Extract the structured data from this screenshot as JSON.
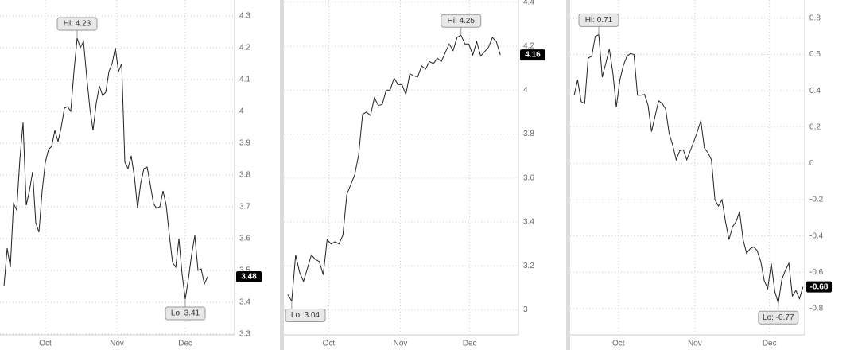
{
  "chart_data": [
    {
      "type": "line",
      "color": "#222222",
      "grid": true,
      "xlim": [
        -1.25,
        72.5
      ],
      "ylim": [
        3.3,
        4.35
      ],
      "xticks": [
        {
          "value": 13,
          "label": "Oct"
        },
        {
          "value": 35.5,
          "label": "Nov"
        },
        {
          "value": 57,
          "label": "Dec"
        }
      ],
      "yticks": [
        3.3,
        3.4,
        3.5,
        3.6,
        3.7,
        3.8,
        3.9,
        4,
        4.1,
        4.2,
        4.3
      ],
      "values": [
        3.45,
        3.57,
        3.51,
        3.71,
        3.69,
        3.85,
        3.965,
        3.705,
        3.75,
        3.81,
        3.65,
        3.62,
        3.75,
        3.84,
        3.88,
        3.89,
        3.94,
        3.905,
        3.95,
        4.01,
        4.015,
        4.0,
        4.125,
        4.23,
        4.2,
        4.22,
        4.11,
        4.01,
        3.94,
        4.025,
        4.08,
        4.05,
        4.06,
        4.125,
        4.15,
        4.2,
        4.125,
        4.15,
        3.84,
        3.82,
        3.86,
        3.795,
        3.695,
        3.775,
        3.82,
        3.825,
        3.77,
        3.71,
        3.695,
        3.7,
        3.75,
        3.705,
        3.61,
        3.525,
        3.51,
        3.6,
        3.4875,
        3.41,
        3.475,
        3.55,
        3.61,
        3.5,
        3.505,
        3.4575,
        3.48
      ],
      "hi_label": "Hi: 4.23",
      "lo_label": "Lo: 3.41",
      "last_label": "3.48"
    },
    {
      "type": "line",
      "color": "#222222",
      "grid": true,
      "xlim": [
        -1,
        58.6
      ],
      "ylim": [
        2.89,
        4.41
      ],
      "xticks": [
        {
          "value": 10.4,
          "label": "Oct"
        },
        {
          "value": 28.6,
          "label": "Nov"
        },
        {
          "value": 46.2,
          "label": "Dec"
        }
      ],
      "yticks": [
        3,
        3.2,
        3.4,
        3.6,
        3.8,
        4,
        4.2,
        4.4
      ],
      "values": [
        3.07,
        3.04,
        3.25,
        3.17,
        3.13,
        3.19,
        3.25,
        3.23,
        3.22,
        3.16,
        3.32,
        3.3,
        3.31,
        3.3,
        3.34,
        3.525,
        3.57,
        3.615,
        3.705,
        3.89,
        3.9,
        3.885,
        3.965,
        3.93,
        3.935,
        4.0,
        4.0,
        4.055,
        4.025,
        4.025,
        3.98,
        4.075,
        4.065,
        4.06,
        4.11,
        4.095,
        4.13,
        4.12,
        4.145,
        4.13,
        4.17,
        4.21,
        4.18,
        4.24,
        4.25,
        4.21,
        4.21,
        4.16,
        4.22,
        4.155,
        4.175,
        4.195,
        4.24,
        4.22,
        4.16
      ],
      "hi_label": "Hi: 4.25",
      "lo_label": "Lo: 3.04",
      "last_label": "4.16"
    },
    {
      "type": "line",
      "color": "#222222",
      "grid": true,
      "xlim": [
        -1.13,
        65.5
      ],
      "ylim": [
        -0.94,
        0.9
      ],
      "xticks": [
        {
          "value": 12.6,
          "label": "Oct"
        },
        {
          "value": 34.3,
          "label": "Nov"
        },
        {
          "value": 55.5,
          "label": "Dec"
        }
      ],
      "yticks": [
        -0.8,
        -0.6,
        -0.4,
        -0.2,
        0,
        0.2,
        0.4,
        0.6,
        0.8
      ],
      "values": [
        0.374,
        0.46,
        0.34,
        0.33,
        0.58,
        0.59,
        0.7,
        0.71,
        0.475,
        0.55,
        0.63,
        0.5,
        0.31,
        0.46,
        0.54,
        0.59,
        0.605,
        0.6,
        0.375,
        0.375,
        0.38,
        0.32,
        0.175,
        0.26,
        0.345,
        0.33,
        0.3,
        0.165,
        0.1,
        0.02,
        0.07,
        0.075,
        0.02,
        0.07,
        0.12,
        0.175,
        0.235,
        0.085,
        0.06,
        0.02,
        -0.2,
        -0.235,
        -0.2,
        -0.32,
        -0.42,
        -0.35,
        -0.32,
        -0.265,
        -0.42,
        -0.495,
        -0.47,
        -0.46,
        -0.48,
        -0.54,
        -0.645,
        -0.69,
        -0.55,
        -0.705,
        -0.77,
        -0.64,
        -0.59,
        -0.55,
        -0.73,
        -0.7,
        -0.745,
        -0.68
      ],
      "hi_label": "Hi: 0.71",
      "lo_label": "Lo: -0.77",
      "last_label": "-0.68"
    }
  ]
}
